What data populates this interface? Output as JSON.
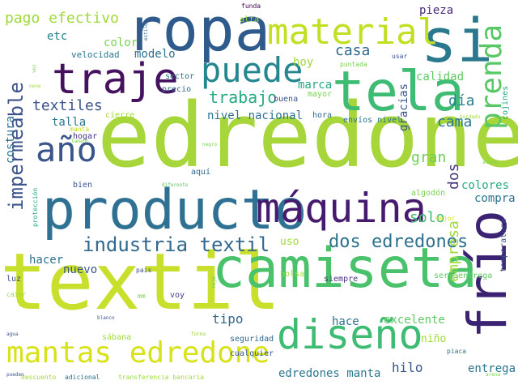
{
  "words": [
    {
      "text": "edredone",
      "color": "#a6d63a"
    },
    {
      "text": "textil",
      "color": "#c8df2c"
    },
    {
      "text": "camiseta",
      "color": "#4ac26c"
    },
    {
      "text": "producto",
      "color": "#2e7193"
    },
    {
      "text": "ropa",
      "color": "#2f5a8c"
    },
    {
      "text": "si",
      "color": "#2a788e"
    },
    {
      "text": "tela",
      "color": "#3fbc73"
    },
    {
      "text": "frío",
      "color": "#3b2272"
    },
    {
      "text": "máquina",
      "color": "#461a6e"
    },
    {
      "text": "traje",
      "color": "#46125f"
    },
    {
      "text": "mantas edredone",
      "color": "#d8e219"
    },
    {
      "text": "diseño",
      "color": "#3fbc73"
    },
    {
      "text": "prenda",
      "color": "#58c765"
    },
    {
      "text": "material",
      "color": "#c2df23"
    },
    {
      "text": "puede",
      "color": "#24868e"
    },
    {
      "text": "año",
      "color": "#3a548c"
    },
    {
      "text": "impermeable",
      "color": "#3b528b"
    },
    {
      "text": "industria textil",
      "color": "#31688e"
    },
    {
      "text": "dos edredones",
      "color": "#2c728e"
    },
    {
      "text": "pago efectivo",
      "color": "#a0da39"
    },
    {
      "text": "textiles",
      "color": "#3b528b"
    },
    {
      "text": "trabajo",
      "color": "#25ab82"
    },
    {
      "text": "casa",
      "color": "#31688e"
    },
    {
      "text": "cama",
      "color": "#2a788e"
    },
    {
      "text": "día",
      "color": "#26828e"
    },
    {
      "text": "gran",
      "color": "#6ece58"
    },
    {
      "text": "solo",
      "color": "#3fbc73"
    },
    {
      "text": "dos",
      "color": "#453781"
    },
    {
      "text": "colores",
      "color": "#25ab82"
    },
    {
      "text": "compra",
      "color": "#2c728e"
    },
    {
      "text": "empresa",
      "color": "#9fda3a"
    },
    {
      "text": "costura",
      "color": "#2c728e"
    },
    {
      "text": "talla",
      "color": "#2a788e"
    },
    {
      "text": "nivel nacional",
      "color": "#2c728e"
    },
    {
      "text": "hoy",
      "color": "#a0da39"
    },
    {
      "text": "marca",
      "color": "#22a884"
    },
    {
      "text": "pieza",
      "color": "#482878"
    },
    {
      "text": "etc",
      "color": "#26828e"
    },
    {
      "text": "color",
      "color": "#7ad151"
    },
    {
      "text": "modelo",
      "color": "#2c728e"
    },
    {
      "text": "velocidad",
      "color": "#2a788e"
    },
    {
      "text": "calidad",
      "color": "#5ec962"
    },
    {
      "text": "gracias",
      "color": "#3b528b"
    },
    {
      "text": "hacer",
      "color": "#2c728e"
    },
    {
      "text": "nuevo",
      "color": "#39568c"
    },
    {
      "text": "uso",
      "color": "#a0da39"
    },
    {
      "text": "tipo",
      "color": "#31688e"
    },
    {
      "text": "hace",
      "color": "#2c728e"
    },
    {
      "text": "excelente",
      "color": "#5ec962"
    },
    {
      "text": "niño",
      "color": "#a0da39"
    },
    {
      "text": "hilo",
      "color": "#39568c"
    },
    {
      "text": "entrega",
      "color": "#2c728e"
    },
    {
      "text": "edredones manta",
      "color": "#2a788e"
    },
    {
      "text": "envíos nivel",
      "color": "#2c728e"
    },
    {
      "text": "hora",
      "color": "#31688e"
    },
    {
      "text": "buena",
      "color": "#3b528b"
    },
    {
      "text": "mayor",
      "color": "#7ad151"
    },
    {
      "text": "precio",
      "color": "#31688e"
    },
    {
      "text": "sector",
      "color": "#2c728e"
    },
    {
      "text": "cierre",
      "color": "#9fda3a"
    },
    {
      "text": "hogar",
      "color": "#46337f"
    },
    {
      "text": "manta",
      "color": "#c2df23"
    },
    {
      "text": "bien",
      "color": "#3b528b"
    },
    {
      "text": "aquí",
      "color": "#31688e"
    },
    {
      "text": "algodón",
      "color": "#7ad151"
    },
    {
      "text": "mejor",
      "color": "#d8e219"
    },
    {
      "text": "temperatura",
      "color": "#3b528b"
    },
    {
      "text": "servientrega",
      "color": "#5ec962"
    },
    {
      "text": "siempre",
      "color": "#46337f"
    },
    {
      "text": "bolsa",
      "color": "#a0da39"
    },
    {
      "text": "seguridad",
      "color": "#31688e"
    },
    {
      "text": "cualquier",
      "color": "#39568c"
    },
    {
      "text": "voy",
      "color": "#433e85"
    },
    {
      "text": "sábana",
      "color": "#a0da39"
    },
    {
      "text": "transferencia bancaria",
      "color": "#9fda3a"
    },
    {
      "text": "adicional",
      "color": "#2c728e"
    },
    {
      "text": "descuento",
      "color": "#a0da39"
    },
    {
      "text": "luz",
      "color": "#3b528b"
    },
    {
      "text": "caior",
      "color": "#a0da39"
    },
    {
      "text": "protección",
      "color": "#22a884"
    },
    {
      "text": "alta",
      "color": "#a0da39"
    },
    {
      "text": "funda",
      "color": "#440154"
    },
    {
      "text": "puntada",
      "color": "#7ad151"
    },
    {
      "text": "usar",
      "color": "#3b528b"
    },
    {
      "text": "cojines",
      "color": "#25ab82"
    },
    {
      "text": "bordado",
      "color": "#a0da39"
    },
    {
      "text": "ahora",
      "color": "#7ad151"
    },
    {
      "text": "diferente",
      "color": "#5ec962"
    },
    {
      "text": "tamaño",
      "color": "#7ad151"
    },
    {
      "text": "pueden",
      "color": "#3b528b"
    },
    {
      "text": "vez",
      "color": "#7ad151"
    },
    {
      "text": "nene",
      "color": "#a0da39"
    },
    {
      "text": "pais",
      "color": "#3b528b"
    },
    {
      "text": "mm",
      "color": "#7ad151"
    },
    {
      "text": "piaca",
      "color": "#2c728e"
    },
    {
      "text": "negro",
      "color": "#7ad151"
    },
    {
      "text": "agua",
      "color": "#3b528b"
    },
    {
      "text": "rojo",
      "color": "#5ec962"
    },
    {
      "text": "forma",
      "color": "#a0da39"
    },
    {
      "text": "estilo",
      "color": "#31688e"
    },
    {
      "text": "arena",
      "color": "#7ad151"
    },
    {
      "text": "blanco",
      "color": "#3b528b"
    }
  ]
}
